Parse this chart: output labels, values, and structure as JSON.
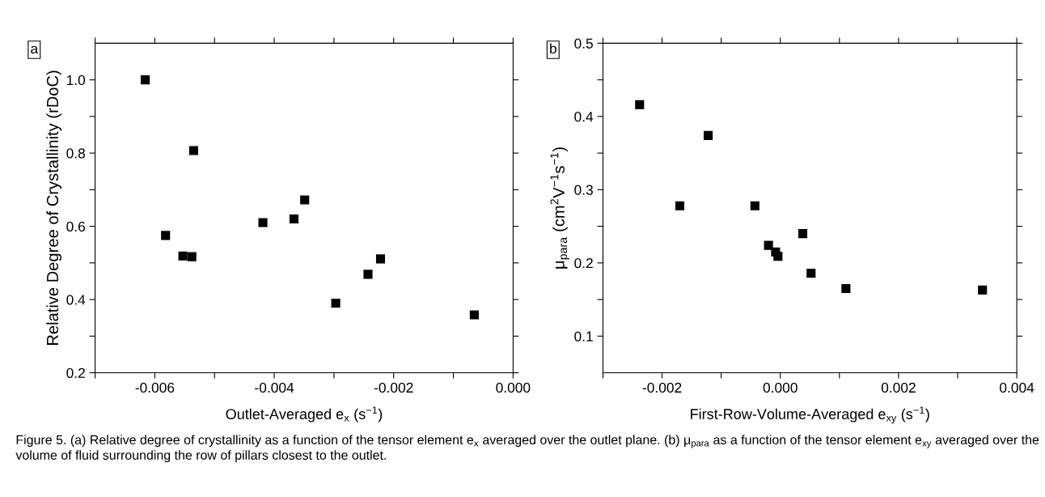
{
  "chart_data": [
    {
      "type": "scatter",
      "xlabel": "Outlet-Averaged e$_{x}$ (s$^{−1}$)",
      "ylabel": "Relative Degree of Crystallinity (rDoC)",
      "annotations": [
        "a"
      ],
      "x": [
        -0.00616,
        -0.00582,
        -0.00553,
        -0.00538,
        -0.00535,
        -0.00419,
        -0.00367,
        -0.00349,
        -0.00297,
        -0.00243,
        -0.00222,
        -0.00065
      ],
      "series": [
        {
          "color": "#000000",
          "values": [
            1.0,
            0.575,
            0.519,
            0.517,
            0.807,
            0.61,
            0.62,
            0.672,
            0.39,
            0.469,
            0.511,
            0.358
          ]
        }
      ],
      "xlim": [
        -0.007,
        0.0
      ],
      "ylim": [
        0.2,
        1.1
      ],
      "xticks": [
        {
          "value": -0.007,
          "label": null
        },
        -0.006,
        {
          "value": -0.005,
          "label": null
        },
        -0.004,
        {
          "value": -0.003,
          "label": null
        },
        -0.002,
        {
          "value": -0.001,
          "label": null
        },
        {
          "value": 0.0,
          "label": "0.000"
        }
      ],
      "yticks": [
        0.2,
        {
          "value": 0.3,
          "label": null
        },
        0.4,
        {
          "value": 0.5,
          "label": null
        },
        0.6,
        {
          "value": 0.7,
          "label": null
        },
        0.8,
        {
          "value": 0.9,
          "label": null
        },
        {
          "value": 1.0,
          "label": "1.0"
        }
      ],
      "marker": "square",
      "grid": false,
      "legend": false
    },
    {
      "type": "scatter",
      "xlabel": "First-Row-Volume-Averaged e$_{xy}$ (s$^{−1}$)",
      "ylabel": "μ$_{para}$ (cm$^{2}$V$^{−1}$s$^{−1}$)",
      "annotations": [
        "b",
        "Figure 5. (a) Relative degree of crystallinity as a function of the tensor element e$_{x}$ averaged over the outlet plane. (b) μ$_{para}$ as a function of the tensor element e$_{xy}$ averaged over the volume of fluid surrounding the row of pillars closest to the outlet."
      ],
      "x": [
        -0.00238,
        -0.0017,
        -0.00122,
        -0.00043,
        -0.0002,
        -8e-05,
        -4e-05,
        0.00038,
        0.00052,
        0.00111,
        0.00342
      ],
      "series": [
        {
          "color": "#000000",
          "values": [
            0.416,
            0.278,
            0.374,
            0.278,
            0.224,
            0.215,
            0.209,
            0.24,
            0.186,
            0.165,
            0.163
          ]
        }
      ],
      "xlim": [
        -0.003,
        0.004
      ],
      "ylim": [
        0.05,
        0.5
      ],
      "xticks": [
        {
          "value": -0.003,
          "label": null
        },
        -0.002,
        {
          "value": -0.001,
          "label": null
        },
        {
          "value": 0.0,
          "label": "0.000"
        },
        {
          "value": 0.001,
          "label": null
        },
        0.002,
        {
          "value": 0.003,
          "label": null
        },
        0.004
      ],
      "yticks": [
        0.1,
        {
          "value": 0.15,
          "label": null
        },
        0.2,
        {
          "value": 0.25,
          "label": null
        },
        0.3,
        {
          "value": 0.35,
          "label": null
        },
        0.4,
        {
          "value": 0.45,
          "label": null
        },
        0.5
      ],
      "marker": "square",
      "grid": false,
      "legend": false
    }
  ]
}
